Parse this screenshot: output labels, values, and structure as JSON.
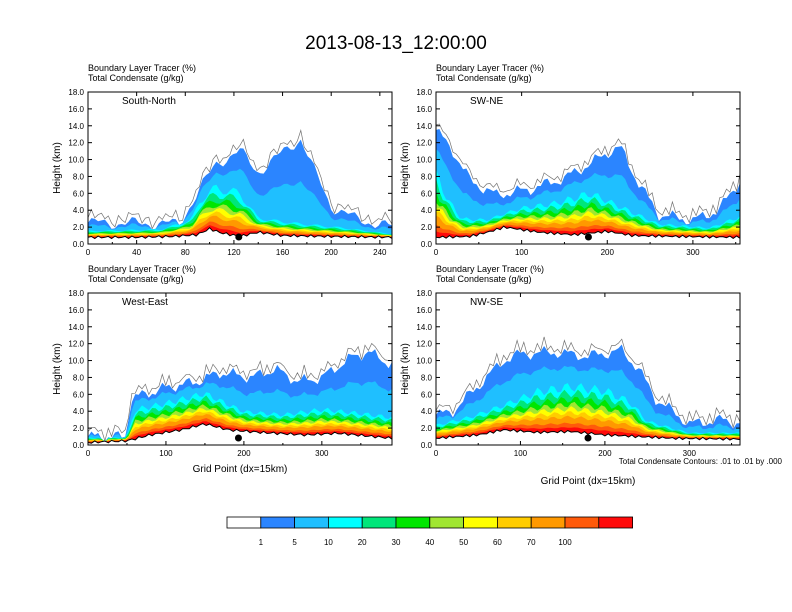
{
  "figure": {
    "title": "2013-08-13_12:00:00",
    "footnote": "Total Condensate Contours: .01 to .01 by .000"
  },
  "colors": {
    "levels": [
      "#ffffff",
      "#2b85ff",
      "#1fbfff",
      "#00ffff",
      "#00e67a",
      "#00e600",
      "#a0e632",
      "#ffff00",
      "#ffcc00",
      "#ff9900",
      "#ff5a0a",
      "#ff0a0a"
    ],
    "contour": "#000000",
    "marker": "#000000"
  },
  "colorbar": {
    "labels": [
      "1",
      "5",
      "10",
      "20",
      "30",
      "40",
      "50",
      "60",
      "70",
      "100"
    ]
  },
  "chart_data": [
    {
      "type": "heatmap",
      "panel": "South-North",
      "header_line1": "Boundary Layer Tracer   (%)",
      "header_line2": "Total Condensate   (g/kg)",
      "ylabel": "Height (km)",
      "xlabel": "",
      "xlim": [
        0,
        250
      ],
      "ylim": [
        0,
        18
      ],
      "xticks": [
        "0",
        "40",
        "80",
        "120",
        "160",
        "200",
        "240"
      ],
      "yticks": [
        "0.0",
        "2.0",
        "4.0",
        "6.0",
        "8.0",
        "10.0",
        "12.0",
        "14.0",
        "16.0",
        "18.0"
      ],
      "terrain_km": [
        [
          0,
          0.8
        ],
        [
          40,
          0.8
        ],
        [
          70,
          0.9
        ],
        [
          90,
          1.1
        ],
        [
          100,
          1.8
        ],
        [
          110,
          1.3
        ],
        [
          125,
          0.9
        ],
        [
          140,
          1.4
        ],
        [
          160,
          1.0
        ],
        [
          200,
          0.9
        ],
        [
          250,
          0.8
        ]
      ],
      "mixing_height_km": [
        [
          0,
          1.6
        ],
        [
          60,
          1.8
        ],
        [
          85,
          3.0
        ],
        [
          92,
          5.5
        ],
        [
          105,
          7.2
        ],
        [
          125,
          6.5
        ],
        [
          140,
          3.2
        ],
        [
          170,
          2.6
        ],
        [
          210,
          2.0
        ],
        [
          250,
          1.2
        ]
      ],
      "cloud_top_km": [
        [
          0,
          2.5
        ],
        [
          75,
          2.4
        ],
        [
          90,
          6.0
        ],
        [
          105,
          9.5
        ],
        [
          125,
          11.0
        ],
        [
          140,
          8.5
        ],
        [
          160,
          10.8
        ],
        [
          175,
          12.5
        ],
        [
          185,
          9.0
        ],
        [
          200,
          4.5
        ],
        [
          220,
          3.0
        ],
        [
          250,
          2.0
        ]
      ],
      "marker_x": 124
    },
    {
      "type": "heatmap",
      "panel": "SW-NE",
      "header_line1": "Boundary Layer Tracer   (%)",
      "header_line2": "Total Condensate   (g/kg)",
      "ylabel": "Height (km)",
      "xlabel": "",
      "xlim": [
        0,
        355
      ],
      "ylim": [
        0,
        18
      ],
      "xticks": [
        "0",
        "100",
        "200",
        "300"
      ],
      "yticks": [
        "0.0",
        "2.0",
        "4.0",
        "6.0",
        "8.0",
        "10.0",
        "12.0",
        "14.0",
        "16.0",
        "18.0"
      ],
      "terrain_km": [
        [
          0,
          0.8
        ],
        [
          40,
          0.9
        ],
        [
          60,
          1.4
        ],
        [
          80,
          2.0
        ],
        [
          120,
          1.4
        ],
        [
          160,
          1.1
        ],
        [
          200,
          1.5
        ],
        [
          230,
          1.0
        ],
        [
          280,
          0.9
        ],
        [
          355,
          0.8
        ]
      ],
      "mixing_height_km": [
        [
          0,
          9.0
        ],
        [
          15,
          5.5
        ],
        [
          30,
          3.2
        ],
        [
          60,
          3.0
        ],
        [
          100,
          4.5
        ],
        [
          140,
          5.2
        ],
        [
          180,
          6.5
        ],
        [
          220,
          4.5
        ],
        [
          260,
          2.5
        ],
        [
          320,
          2.0
        ],
        [
          355,
          3.5
        ]
      ],
      "cloud_top_km": [
        [
          0,
          13.5
        ],
        [
          20,
          11.0
        ],
        [
          40,
          7.5
        ],
        [
          70,
          5.8
        ],
        [
          110,
          6.5
        ],
        [
          150,
          7.8
        ],
        [
          180,
          9.5
        ],
        [
          200,
          10.8
        ],
        [
          215,
          11.5
        ],
        [
          235,
          7.5
        ],
        [
          260,
          3.5
        ],
        [
          300,
          2.8
        ],
        [
          330,
          4.0
        ],
        [
          355,
          7.5
        ]
      ],
      "marker_x": 178
    },
    {
      "type": "heatmap",
      "panel": "West-East",
      "header_line1": "Boundary Layer Tracer   (%)",
      "header_line2": "Total Condensate   (g/kg)",
      "ylabel": "Height (km)",
      "xlabel": "Grid Point (dx=15km)",
      "xlim": [
        0,
        390
      ],
      "ylim": [
        0,
        18
      ],
      "xticks": [
        "0",
        "100",
        "200",
        "300"
      ],
      "yticks": [
        "0.0",
        "2.0",
        "4.0",
        "6.0",
        "8.0",
        "10.0",
        "12.0",
        "14.0",
        "16.0",
        "18.0"
      ],
      "terrain_km": [
        [
          0,
          0.3
        ],
        [
          50,
          0.5
        ],
        [
          80,
          1.2
        ],
        [
          120,
          1.8
        ],
        [
          150,
          2.5
        ],
        [
          180,
          1.8
        ],
        [
          220,
          1.5
        ],
        [
          280,
          1.2
        ],
        [
          320,
          1.4
        ],
        [
          390,
          0.8
        ]
      ],
      "mixing_height_km": [
        [
          0,
          0.9
        ],
        [
          50,
          0.9
        ],
        [
          60,
          4.5
        ],
        [
          100,
          5.3
        ],
        [
          150,
          6.5
        ],
        [
          200,
          4.2
        ],
        [
          250,
          3.8
        ],
        [
          300,
          4.5
        ],
        [
          350,
          4.0
        ],
        [
          390,
          3.5
        ]
      ],
      "cloud_top_km": [
        [
          0,
          1.0
        ],
        [
          48,
          1.0
        ],
        [
          55,
          5.5
        ],
        [
          100,
          6.8
        ],
        [
          140,
          7.5
        ],
        [
          170,
          8.6
        ],
        [
          210,
          8.0
        ],
        [
          240,
          9.0
        ],
        [
          270,
          7.5
        ],
        [
          300,
          8.0
        ],
        [
          340,
          10.5
        ],
        [
          360,
          11.0
        ],
        [
          390,
          9.5
        ]
      ],
      "marker_x": 193
    },
    {
      "type": "heatmap",
      "panel": "NW-SE",
      "header_line1": "Boundary Layer Tracer   (%)",
      "header_line2": "Total Condensate   (g/kg)",
      "ylabel": "Height (km)",
      "xlabel": "Grid Point (dx=15km)",
      "xlim": [
        0,
        360
      ],
      "ylim": [
        0,
        18
      ],
      "xticks": [
        "0",
        "100",
        "200",
        "300"
      ],
      "yticks": [
        "0.0",
        "2.0",
        "4.0",
        "6.0",
        "8.0",
        "10.0",
        "12.0",
        "14.0",
        "16.0",
        "18.0"
      ],
      "terrain_km": [
        [
          0,
          0.8
        ],
        [
          50,
          1.2
        ],
        [
          80,
          1.8
        ],
        [
          120,
          1.5
        ],
        [
          160,
          1.6
        ],
        [
          200,
          1.2
        ],
        [
          240,
          1.0
        ],
        [
          280,
          0.8
        ],
        [
          360,
          0.7
        ]
      ],
      "mixing_height_km": [
        [
          0,
          2.5
        ],
        [
          40,
          3.5
        ],
        [
          80,
          5.0
        ],
        [
          120,
          6.8
        ],
        [
          160,
          7.5
        ],
        [
          200,
          7.0
        ],
        [
          230,
          5.5
        ],
        [
          250,
          3.0
        ],
        [
          300,
          1.5
        ],
        [
          360,
          1.5
        ]
      ],
      "cloud_top_km": [
        [
          0,
          3.5
        ],
        [
          20,
          4.0
        ],
        [
          60,
          8.0
        ],
        [
          80,
          10.0
        ],
        [
          100,
          10.8
        ],
        [
          140,
          11.0
        ],
        [
          180,
          10.5
        ],
        [
          220,
          11.2
        ],
        [
          240,
          9.0
        ],
        [
          260,
          5.5
        ],
        [
          300,
          2.5
        ],
        [
          340,
          3.0
        ],
        [
          360,
          2.5
        ]
      ],
      "marker_x": 180
    }
  ]
}
